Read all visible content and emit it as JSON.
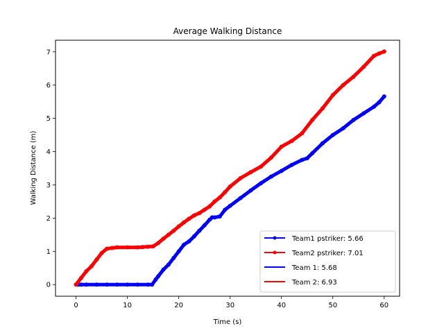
{
  "chart_data": {
    "type": "line",
    "title": "Average Walking Distance",
    "xlabel": "Time (s)",
    "ylabel": "Walking Distance (m)",
    "xlim": [
      -4,
      63
    ],
    "ylim": [
      -0.35,
      7.35
    ],
    "xticks": [
      0,
      10,
      20,
      30,
      40,
      50,
      60
    ],
    "yticks": [
      0,
      1,
      2,
      3,
      4,
      5,
      6,
      7
    ],
    "grid": false,
    "legend_position": "bottom-right",
    "series": [
      {
        "name": "Team1 pstriker: 5.66",
        "color": "#0000ff",
        "marker": true,
        "x": [
          0,
          0.5,
          1,
          2,
          4,
          6,
          8,
          10,
          12,
          14,
          14.8,
          15.5,
          16,
          17,
          18,
          19,
          20,
          21,
          22,
          23,
          24,
          25,
          26,
          26.5,
          27,
          28,
          29,
          30,
          32,
          34,
          36,
          38,
          40,
          42,
          44,
          45,
          46,
          48,
          50,
          52,
          54,
          56,
          58,
          59,
          60
        ],
        "y": [
          0,
          0,
          0,
          0,
          0,
          0,
          0,
          0,
          0,
          0,
          0,
          0.15,
          0.25,
          0.45,
          0.6,
          0.8,
          1.0,
          1.2,
          1.3,
          1.45,
          1.62,
          1.78,
          1.95,
          2.02,
          2.02,
          2.05,
          2.25,
          2.37,
          2.6,
          2.83,
          3.05,
          3.25,
          3.42,
          3.6,
          3.75,
          3.8,
          3.95,
          4.25,
          4.5,
          4.7,
          4.95,
          5.15,
          5.35,
          5.48,
          5.66
        ]
      },
      {
        "name": "Team2 pstriker: 7.01",
        "color": "#ff0000",
        "marker": true,
        "x": [
          0,
          1,
          2,
          3,
          4,
          5,
          6,
          7,
          8,
          10,
          12,
          13,
          14,
          15,
          16,
          17,
          18,
          19,
          20,
          21,
          22,
          23,
          24,
          25,
          26,
          27,
          28,
          29,
          30,
          32,
          34,
          36,
          38,
          40,
          42,
          44,
          46,
          48,
          50,
          52,
          54,
          56,
          58,
          59,
          60
        ],
        "y": [
          0,
          0.2,
          0.4,
          0.55,
          0.75,
          0.95,
          1.08,
          1.1,
          1.12,
          1.12,
          1.12,
          1.13,
          1.14,
          1.15,
          1.25,
          1.38,
          1.5,
          1.62,
          1.75,
          1.87,
          1.98,
          2.08,
          2.15,
          2.25,
          2.35,
          2.5,
          2.62,
          2.78,
          2.95,
          3.2,
          3.38,
          3.55,
          3.82,
          4.15,
          4.32,
          4.55,
          4.95,
          5.3,
          5.7,
          6.0,
          6.25,
          6.55,
          6.88,
          6.95,
          7.01
        ]
      },
      {
        "name": "Team 1: 5.68",
        "color": "#0000ff",
        "marker": false,
        "x": [],
        "y": []
      },
      {
        "name": "Team 2: 6.93",
        "color": "#ff0000",
        "marker": false,
        "x": [],
        "y": []
      }
    ]
  }
}
